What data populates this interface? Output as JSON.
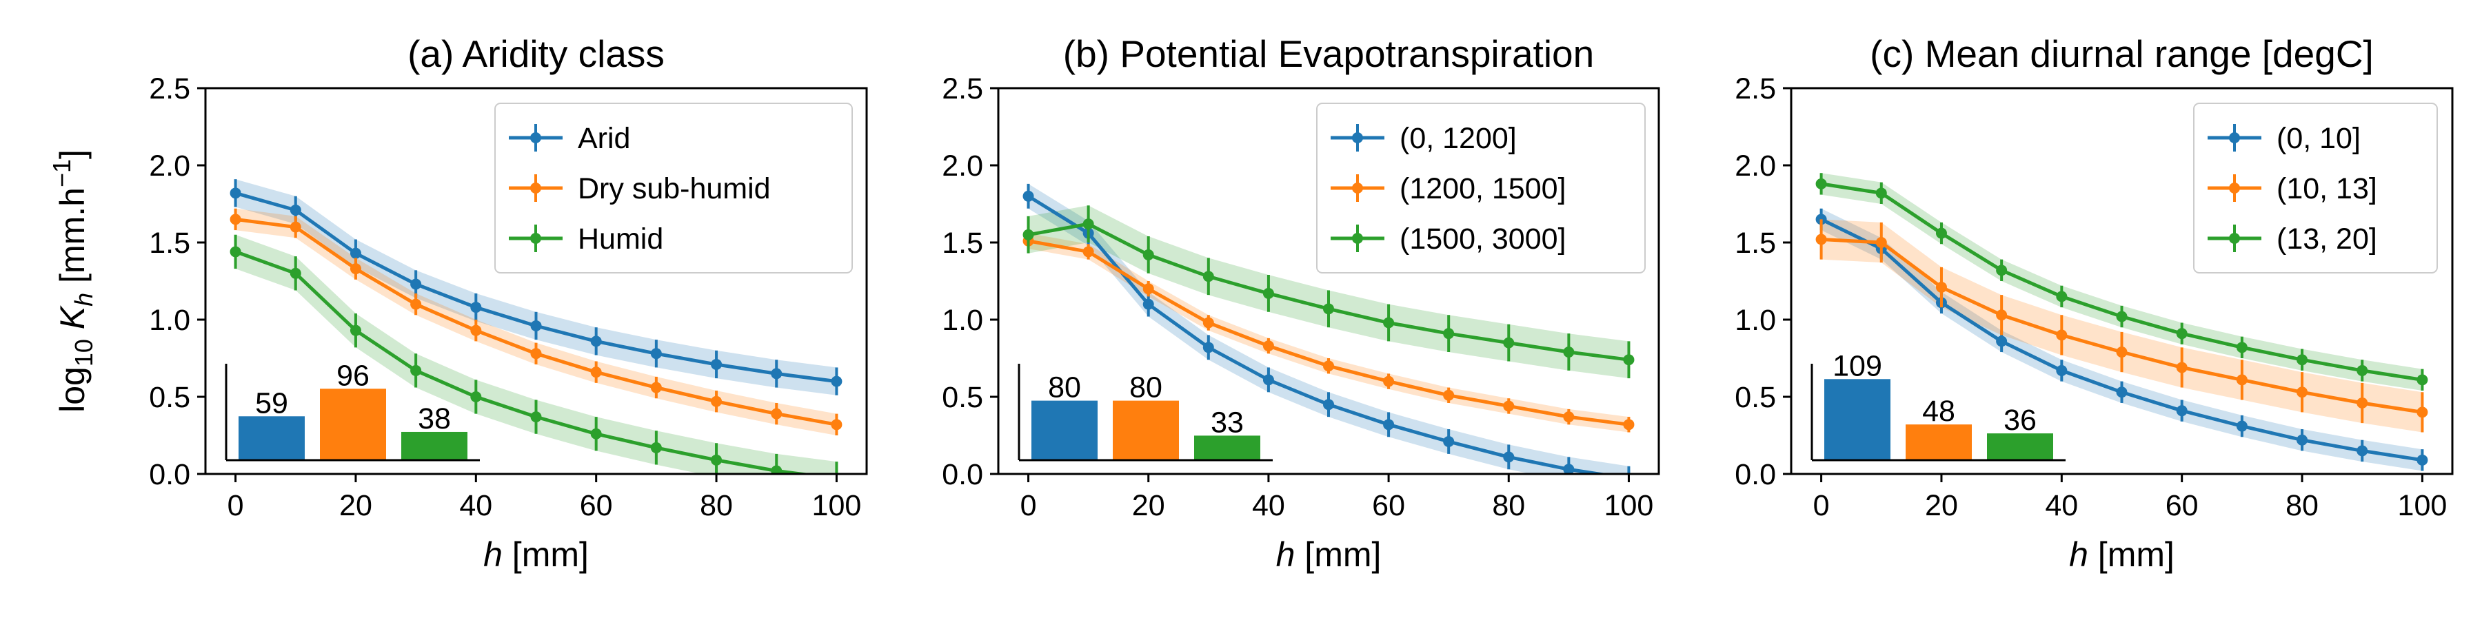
{
  "colors": {
    "blue": "#1f77b4",
    "orange": "#ff7f0e",
    "green": "#2ca02c"
  },
  "ylabel_parts": {
    "log": "log",
    "sub10": "10",
    "k": "K",
    "subh": "h",
    "unit": " [mm.h",
    "exp": "−1",
    "close": "]"
  },
  "xlabel_parts": {
    "h": "h",
    "unit": " [mm]"
  },
  "chart_data": [
    {
      "type": "line",
      "title": "(a) Aridity class",
      "xlabel": "h [mm]",
      "ylabel": "log10 K_h [mm.h^-1]",
      "xlim": [
        -5,
        105
      ],
      "ylim": [
        0,
        2.5
      ],
      "xticks": [
        "0",
        "20",
        "40",
        "60",
        "80",
        "100"
      ],
      "yticks": [
        "0.0",
        "0.5",
        "1.0",
        "1.5",
        "2.0",
        "2.5"
      ],
      "legend_position": "top-right",
      "x": [
        0,
        10,
        20,
        30,
        40,
        50,
        60,
        70,
        80,
        90,
        100
      ],
      "series": [
        {
          "name": "Arid",
          "color": "#1f77b4",
          "values": [
            1.82,
            1.71,
            1.43,
            1.23,
            1.08,
            0.96,
            0.86,
            0.78,
            0.71,
            0.65,
            0.6
          ],
          "band": 0.09
        },
        {
          "name": "Dry sub-humid",
          "color": "#ff7f0e",
          "values": [
            1.65,
            1.6,
            1.33,
            1.1,
            0.93,
            0.78,
            0.66,
            0.56,
            0.47,
            0.39,
            0.32
          ],
          "band": 0.07
        },
        {
          "name": "Humid",
          "color": "#2ca02c",
          "values": [
            1.44,
            1.3,
            0.93,
            0.67,
            0.5,
            0.37,
            0.26,
            0.17,
            0.09,
            0.02,
            -0.03
          ],
          "band": 0.11
        }
      ],
      "counts": [
        {
          "label": "59",
          "value": 59
        },
        {
          "label": "96",
          "value": 96
        },
        {
          "label": "38",
          "value": 38
        }
      ]
    },
    {
      "type": "line",
      "title": "(b) Potential Evapotranspiration",
      "xlabel": "h [mm]",
      "ylabel": "",
      "xlim": [
        -5,
        105
      ],
      "ylim": [
        0,
        2.5
      ],
      "xticks": [
        "0",
        "20",
        "40",
        "60",
        "80",
        "100"
      ],
      "yticks": [
        "0.0",
        "0.5",
        "1.0",
        "1.5",
        "2.0",
        "2.5"
      ],
      "legend_position": "top-right",
      "x": [
        0,
        10,
        20,
        30,
        40,
        50,
        60,
        70,
        80,
        90,
        100
      ],
      "series": [
        {
          "name": "(0, 1200]",
          "color": "#1f77b4",
          "values": [
            1.8,
            1.56,
            1.1,
            0.82,
            0.61,
            0.45,
            0.32,
            0.21,
            0.11,
            0.03,
            -0.03
          ],
          "band": 0.08
        },
        {
          "name": "(1200, 1500]",
          "color": "#ff7f0e",
          "values": [
            1.51,
            1.44,
            1.2,
            0.98,
            0.83,
            0.7,
            0.6,
            0.51,
            0.44,
            0.37,
            0.32
          ],
          "band": 0.05
        },
        {
          "name": "(1500, 3000]",
          "color": "#2ca02c",
          "values": [
            1.55,
            1.62,
            1.42,
            1.28,
            1.17,
            1.07,
            0.98,
            0.91,
            0.85,
            0.79,
            0.74
          ],
          "band": 0.12
        }
      ],
      "counts": [
        {
          "label": "80",
          "value": 80
        },
        {
          "label": "80",
          "value": 80
        },
        {
          "label": "33",
          "value": 33
        }
      ]
    },
    {
      "type": "line",
      "title": "(c) Mean diurnal range [degC]",
      "xlabel": "h [mm]",
      "ylabel": "",
      "xlim": [
        -5,
        105
      ],
      "ylim": [
        0,
        2.5
      ],
      "xticks": [
        "0",
        "20",
        "40",
        "60",
        "80",
        "100"
      ],
      "yticks": [
        "0.0",
        "0.5",
        "1.0",
        "1.5",
        "2.0",
        "2.5"
      ],
      "legend_position": "top-right",
      "x": [
        0,
        10,
        20,
        30,
        40,
        50,
        60,
        70,
        80,
        90,
        100
      ],
      "series": [
        {
          "name": "(0, 10]",
          "color": "#1f77b4",
          "values": [
            1.65,
            1.46,
            1.11,
            0.86,
            0.67,
            0.53,
            0.41,
            0.31,
            0.22,
            0.15,
            0.09
          ],
          "band": 0.07
        },
        {
          "name": "(10, 13]",
          "color": "#ff7f0e",
          "values": [
            1.52,
            1.5,
            1.21,
            1.03,
            0.9,
            0.79,
            0.69,
            0.61,
            0.53,
            0.46,
            0.4
          ],
          "band": 0.13
        },
        {
          "name": "(13, 20]",
          "color": "#2ca02c",
          "values": [
            1.88,
            1.82,
            1.56,
            1.32,
            1.15,
            1.02,
            0.91,
            0.82,
            0.74,
            0.67,
            0.61
          ],
          "band": 0.07
        }
      ],
      "counts": [
        {
          "label": "109",
          "value": 109
        },
        {
          "label": "48",
          "value": 48
        },
        {
          "label": "36",
          "value": 36
        }
      ]
    }
  ]
}
